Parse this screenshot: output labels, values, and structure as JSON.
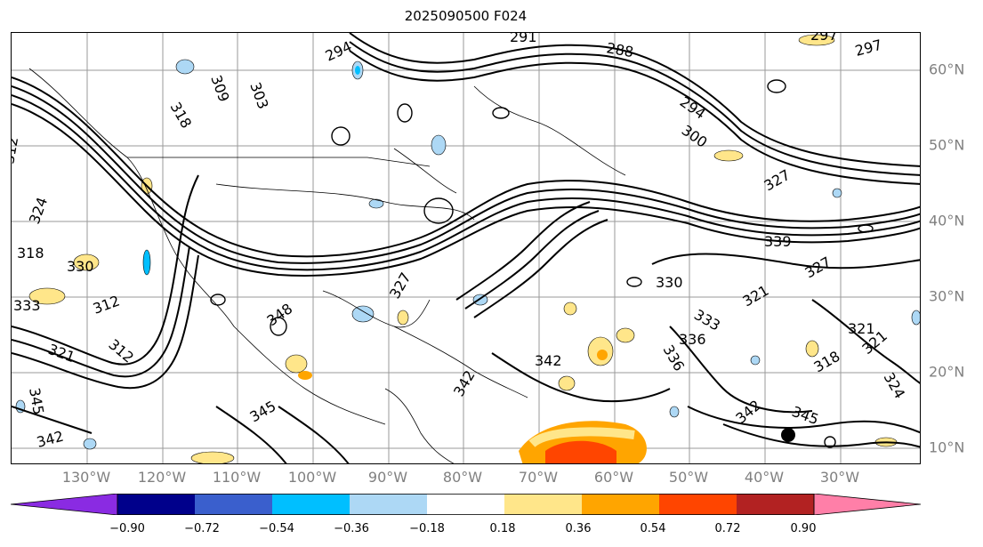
{
  "title": "2025090500 F024",
  "longitude_labels": [
    "130°W",
    "120°W",
    "110°W",
    "100°W",
    "90°W",
    "80°W",
    "70°W",
    "60°W",
    "50°W",
    "40°W",
    "30°W"
  ],
  "latitude_labels": [
    "60°N",
    "50°N",
    "40°N",
    "30°N",
    "20°N",
    "10°N"
  ],
  "contour_labels": [
    "294",
    "291",
    "288",
    "297",
    "297",
    "309",
    "303",
    "318",
    "312",
    "324",
    "318",
    "330",
    "333",
    "312",
    "321",
    "300",
    "312",
    "327",
    "294",
    "321",
    "345",
    "342",
    "348",
    "336",
    "345",
    "342",
    "342",
    "339",
    "330",
    "333",
    "336",
    "321",
    "327",
    "321",
    "318",
    "324",
    "327",
    "342",
    "345"
  ],
  "colorbar": {
    "ticks": [
      "−0.90",
      "−0.72",
      "−0.54",
      "−0.36",
      "−0.18",
      "0.18",
      "0.36",
      "0.54",
      "0.72",
      "0.90"
    ],
    "colors": [
      "#8a2be2",
      "#00008b",
      "#3a5fcd",
      "#00bfff",
      "#add8f5",
      "#ffffff",
      "#ffe68a",
      "#ffa500",
      "#ff4500",
      "#b22222",
      "#ff7fa8"
    ]
  }
}
